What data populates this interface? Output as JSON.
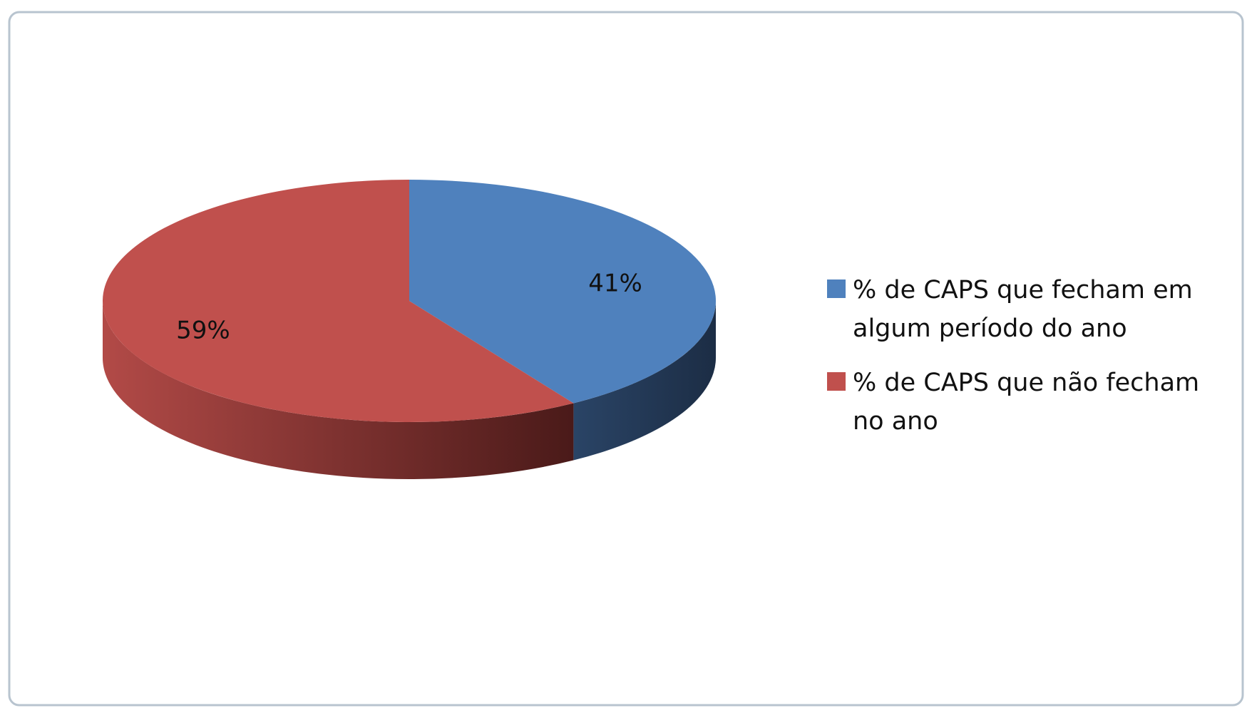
{
  "chart_data": {
    "type": "pie",
    "categories": [
      "% de CAPS que fecham em algum período do ano",
      "% de CAPS que não fecham no ano"
    ],
    "values": [
      41,
      59
    ],
    "value_labels": [
      "41%",
      "59%"
    ],
    "colors": [
      "#4f81bd",
      "#c0504d"
    ],
    "legend": "right"
  }
}
